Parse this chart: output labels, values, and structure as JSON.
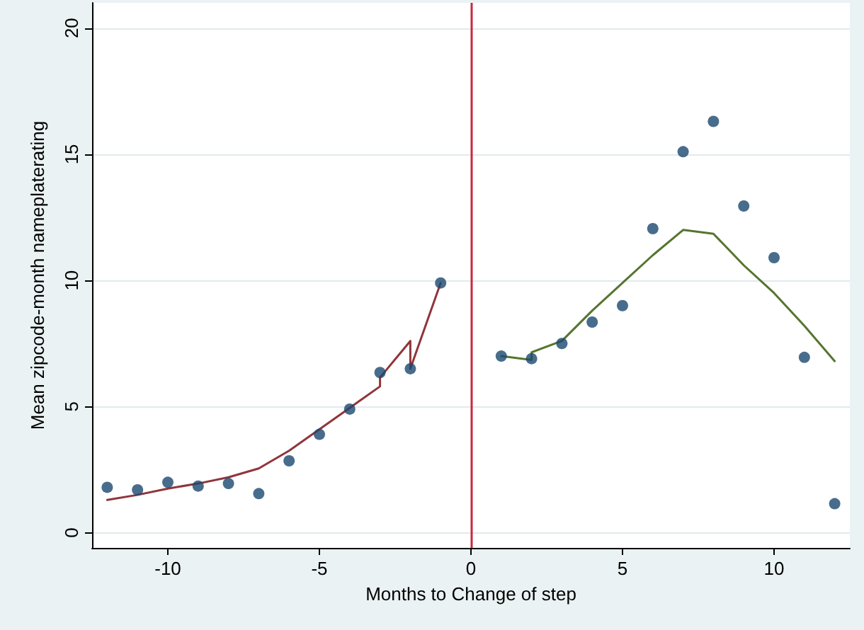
{
  "chart_data": {
    "type": "scatter",
    "xlabel": "Months to Change of step",
    "ylabel": "Mean zipcode-month nameplaterating",
    "xlim": [
      -12.5,
      12.5
    ],
    "xticks": [
      -10,
      -5,
      0,
      5,
      10
    ],
    "ylim": [
      -0.6,
      21
    ],
    "yticks": [
      0,
      5,
      10,
      15,
      20
    ],
    "grid": "y",
    "series": [
      {
        "marker": "circle",
        "color": "#1a476f",
        "x": [
          -12,
          -11,
          -10,
          -9,
          -8,
          -7,
          -6,
          -5,
          -4,
          -3,
          -2,
          -1,
          1,
          2,
          3,
          4,
          5,
          6,
          7,
          8,
          9,
          10,
          11,
          12
        ],
        "values": [
          1.8,
          1.7,
          2.0,
          1.85,
          1.95,
          1.55,
          2.85,
          3.9,
          4.9,
          6.35,
          6.5,
          9.9,
          7.0,
          6.9,
          7.5,
          8.35,
          9.0,
          12.05,
          15.1,
          16.3,
          12.95,
          10.9,
          6.95,
          1.15
        ]
      },
      {
        "type": "line",
        "marker": "none",
        "color": "#90353b",
        "x": [
          -12,
          -11,
          -10,
          -9,
          -8,
          -7,
          -6,
          -5,
          -4,
          -3,
          -3,
          -2,
          -2,
          -1
        ],
        "values": [
          1.3,
          1.5,
          1.75,
          1.95,
          2.2,
          2.55,
          3.25,
          4.1,
          4.95,
          5.8,
          6.15,
          7.6,
          6.5,
          9.9
        ]
      },
      {
        "type": "line",
        "marker": "none",
        "color": "#55752f",
        "x": [
          1,
          2,
          2,
          3,
          4,
          5,
          6,
          7,
          8,
          9,
          10,
          11,
          12
        ],
        "values": [
          7.0,
          6.85,
          7.15,
          7.6,
          8.8,
          9.9,
          11.0,
          12.0,
          11.85,
          10.6,
          9.5,
          8.2,
          6.8
        ]
      }
    ],
    "ref_lines": [
      {
        "axis": "x",
        "value": 0,
        "color": "#c8283c"
      }
    ]
  }
}
